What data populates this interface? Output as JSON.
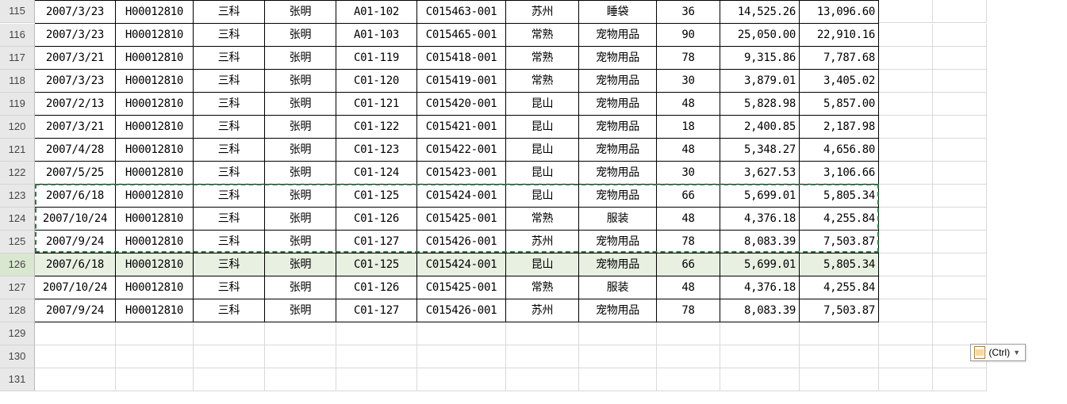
{
  "paste_label": "(Ctrl)",
  "marquee": {
    "start_row_index": 8,
    "end_row_index": 10
  },
  "selected_row_index": 11,
  "columns": [
    {
      "key": "date",
      "align": "c"
    },
    {
      "key": "hcode",
      "align": "c"
    },
    {
      "key": "dept",
      "align": "c"
    },
    {
      "key": "clerk",
      "align": "c"
    },
    {
      "key": "loc",
      "align": "c"
    },
    {
      "key": "doc",
      "align": "c"
    },
    {
      "key": "city",
      "align": "c"
    },
    {
      "key": "cat",
      "align": "c"
    },
    {
      "key": "qty",
      "align": "c"
    },
    {
      "key": "amt1",
      "align": "r"
    },
    {
      "key": "amt2",
      "align": "r"
    }
  ],
  "row_start": 115,
  "data_rows": 14,
  "blank_rows": 3,
  "rows": [
    {
      "date": "2007/3/23",
      "hcode": "H00012810",
      "dept": "三科",
      "clerk": "张明",
      "loc": "A01-102",
      "doc": "C015463-001",
      "city": "苏州",
      "cat": "睡袋",
      "qty": "36",
      "amt1": "14,525.26",
      "amt2": "13,096.60"
    },
    {
      "date": "2007/3/23",
      "hcode": "H00012810",
      "dept": "三科",
      "clerk": "张明",
      "loc": "A01-103",
      "doc": "C015465-001",
      "city": "常熟",
      "cat": "宠物用品",
      "qty": "90",
      "amt1": "25,050.00",
      "amt2": "22,910.16"
    },
    {
      "date": "2007/3/21",
      "hcode": "H00012810",
      "dept": "三科",
      "clerk": "张明",
      "loc": "C01-119",
      "doc": "C015418-001",
      "city": "常熟",
      "cat": "宠物用品",
      "qty": "78",
      "amt1": "9,315.86",
      "amt2": "7,787.68"
    },
    {
      "date": "2007/3/23",
      "hcode": "H00012810",
      "dept": "三科",
      "clerk": "张明",
      "loc": "C01-120",
      "doc": "C015419-001",
      "city": "常熟",
      "cat": "宠物用品",
      "qty": "30",
      "amt1": "3,879.01",
      "amt2": "3,405.02"
    },
    {
      "date": "2007/2/13",
      "hcode": "H00012810",
      "dept": "三科",
      "clerk": "张明",
      "loc": "C01-121",
      "doc": "C015420-001",
      "city": "昆山",
      "cat": "宠物用品",
      "qty": "48",
      "amt1": "5,828.98",
      "amt2": "5,857.00"
    },
    {
      "date": "2007/3/21",
      "hcode": "H00012810",
      "dept": "三科",
      "clerk": "张明",
      "loc": "C01-122",
      "doc": "C015421-001",
      "city": "昆山",
      "cat": "宠物用品",
      "qty": "18",
      "amt1": "2,400.85",
      "amt2": "2,187.98"
    },
    {
      "date": "2007/4/28",
      "hcode": "H00012810",
      "dept": "三科",
      "clerk": "张明",
      "loc": "C01-123",
      "doc": "C015422-001",
      "city": "昆山",
      "cat": "宠物用品",
      "qty": "48",
      "amt1": "5,348.27",
      "amt2": "4,656.80"
    },
    {
      "date": "2007/5/25",
      "hcode": "H00012810",
      "dept": "三科",
      "clerk": "张明",
      "loc": "C01-124",
      "doc": "C015423-001",
      "city": "昆山",
      "cat": "宠物用品",
      "qty": "30",
      "amt1": "3,627.53",
      "amt2": "3,106.66"
    },
    {
      "date": "2007/6/18",
      "hcode": "H00012810",
      "dept": "三科",
      "clerk": "张明",
      "loc": "C01-125",
      "doc": "C015424-001",
      "city": "昆山",
      "cat": "宠物用品",
      "qty": "66",
      "amt1": "5,699.01",
      "amt2": "5,805.34"
    },
    {
      "date": "2007/10/24",
      "hcode": "H00012810",
      "dept": "三科",
      "clerk": "张明",
      "loc": "C01-126",
      "doc": "C015425-001",
      "city": "常熟",
      "cat": "服装",
      "qty": "48",
      "amt1": "4,376.18",
      "amt2": "4,255.84"
    },
    {
      "date": "2007/9/24",
      "hcode": "H00012810",
      "dept": "三科",
      "clerk": "张明",
      "loc": "C01-127",
      "doc": "C015426-001",
      "city": "苏州",
      "cat": "宠物用品",
      "qty": "78",
      "amt1": "8,083.39",
      "amt2": "7,503.87"
    },
    {
      "date": "2007/6/18",
      "hcode": "H00012810",
      "dept": "三科",
      "clerk": "张明",
      "loc": "C01-125",
      "doc": "C015424-001",
      "city": "昆山",
      "cat": "宠物用品",
      "qty": "66",
      "amt1": "5,699.01",
      "amt2": "5,805.34"
    },
    {
      "date": "2007/10/24",
      "hcode": "H00012810",
      "dept": "三科",
      "clerk": "张明",
      "loc": "C01-126",
      "doc": "C015425-001",
      "city": "常熟",
      "cat": "服装",
      "qty": "48",
      "amt1": "4,376.18",
      "amt2": "4,255.84"
    },
    {
      "date": "2007/9/24",
      "hcode": "H00012810",
      "dept": "三科",
      "clerk": "张明",
      "loc": "C01-127",
      "doc": "C015426-001",
      "city": "苏州",
      "cat": "宠物用品",
      "qty": "78",
      "amt1": "8,083.39",
      "amt2": "7,503.87"
    }
  ]
}
